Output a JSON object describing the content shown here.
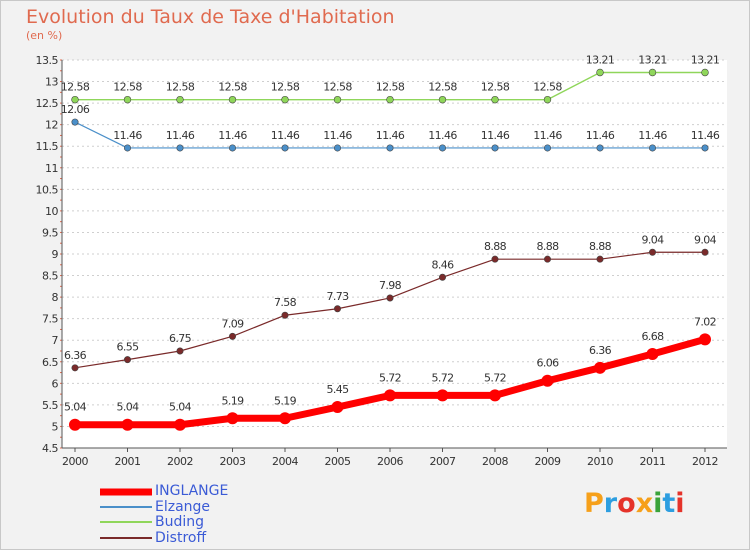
{
  "header": {
    "title": "Evolution du Taux de Taxe d'Habitation",
    "subtitle": "(en %)"
  },
  "logo": {
    "text": "Proxiti",
    "colors": [
      "#f6a01a",
      "#2d9ee0",
      "#e5332a",
      "#f6a01a",
      "#3aa33a",
      "#2d9ee0",
      "#e5332a"
    ]
  },
  "chart_data": {
    "type": "line",
    "x": [
      "2000",
      "2001",
      "2002",
      "2003",
      "2004",
      "2005",
      "2006",
      "2007",
      "2008",
      "2009",
      "2010",
      "2011",
      "2012"
    ],
    "ylim": [
      4.5,
      13.5
    ],
    "yticks": [
      "4.5",
      "5",
      "5.5",
      "6",
      "6.5",
      "7",
      "7.5",
      "8",
      "8.5",
      "9",
      "9.5",
      "10",
      "10.5",
      "11",
      "11.5",
      "12",
      "12.5",
      "13",
      "13.5"
    ],
    "grid": "horizontal-dashed",
    "legend_position": "bottom-left",
    "series": [
      {
        "name": "INGLANGE",
        "color": "#ff0000",
        "values": [
          5.04,
          5.04,
          5.04,
          5.19,
          5.19,
          5.45,
          5.72,
          5.72,
          5.72,
          6.06,
          6.36,
          6.68,
          7.02
        ],
        "labels": [
          "5.04",
          "5.04",
          "5.04",
          "5.19",
          "5.19",
          "5.45",
          "5.72",
          "5.72",
          "5.72",
          "6.06",
          "6.36",
          "6.68",
          "7.02"
        ]
      },
      {
        "name": "Elzange",
        "color": "#4a8fc9",
        "values": [
          12.06,
          11.46,
          11.46,
          11.46,
          11.46,
          11.46,
          11.46,
          11.46,
          11.46,
          11.46,
          11.46,
          11.46,
          11.46
        ],
        "labels": [
          "12.06",
          "11.46",
          "11.46",
          "11.46",
          "11.46",
          "11.46",
          "11.46",
          "11.46",
          "11.46",
          "11.46",
          "11.46",
          "11.46",
          "11.46"
        ]
      },
      {
        "name": "Buding",
        "color": "#8fd65a",
        "values": [
          12.58,
          12.58,
          12.58,
          12.58,
          12.58,
          12.58,
          12.58,
          12.58,
          12.58,
          12.58,
          13.21,
          13.21,
          13.21
        ],
        "labels": [
          "12.58",
          "12.58",
          "12.58",
          "12.58",
          "12.58",
          "12.58",
          "12.58",
          "12.58",
          "12.58",
          "12.58",
          "13.21",
          "13.21",
          "13.21"
        ]
      },
      {
        "name": "Distroff",
        "color": "#7a2a2a",
        "values": [
          6.36,
          6.55,
          6.75,
          7.09,
          7.58,
          7.73,
          7.98,
          8.46,
          8.88,
          8.88,
          8.88,
          9.04,
          9.04
        ],
        "labels": [
          "6.36",
          "6.55",
          "6.75",
          "7.09",
          "7.58",
          "7.73",
          "7.98",
          "8.46",
          "8.88",
          "8.88",
          "8.88",
          "9.04",
          "9.04"
        ]
      }
    ]
  }
}
